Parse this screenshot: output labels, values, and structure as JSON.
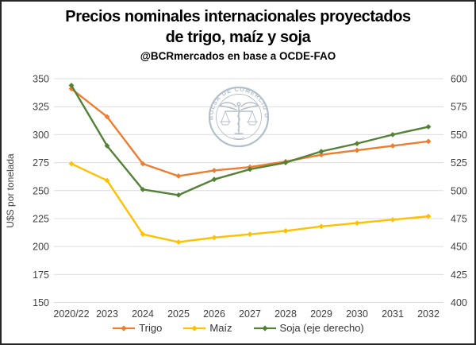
{
  "header": {
    "title_line1": "Precios nominales internacionales proyectados",
    "title_line2": "de trigo, maíz y soja",
    "subtitle": "@BCRmercados en base a OCDE-FAO"
  },
  "watermark": {
    "text": "BOLSA DE COMERCIO DE ROSARIO",
    "color": "#a6b4c2"
  },
  "chart_data": {
    "type": "line",
    "title": "Precios nominales internacionales proyectados de trigo, maíz y soja",
    "subtitle": "@BCRmercados en base a OCDE-FAO",
    "grid": true,
    "legend_position": "bottom",
    "categories": [
      "2020/22",
      "2023",
      "2024",
      "2025",
      "2026",
      "2027",
      "2028",
      "2029",
      "2030",
      "2031",
      "2032"
    ],
    "left_axis": {
      "label": "U$S por tonelada",
      "min": 150,
      "max": 350,
      "step": 25,
      "ticks": [
        350,
        325,
        300,
        275,
        250,
        225,
        200,
        175,
        150
      ]
    },
    "right_axis": {
      "min": 400,
      "max": 600,
      "step": 25,
      "ticks": [
        600,
        575,
        550,
        525,
        500,
        475,
        450,
        425,
        400
      ]
    },
    "series": [
      {
        "name": "Trigo",
        "axis": "left",
        "color": "#ED7D31",
        "values": [
          341,
          316,
          274,
          263,
          268,
          271,
          276,
          282,
          286,
          290,
          294
        ]
      },
      {
        "name": "Maíz",
        "axis": "left",
        "color": "#FFC000",
        "values": [
          274,
          259,
          211,
          204,
          208,
          211,
          214,
          218,
          221,
          224,
          227
        ]
      },
      {
        "name": "Soja (eje derecho)",
        "axis": "right",
        "color": "#538135",
        "values": [
          594,
          540,
          501,
          496,
          510,
          519,
          525,
          535,
          542,
          550,
          557
        ]
      }
    ],
    "colors": {
      "gridline": "#dcdcdc",
      "tick_label": "#404040"
    }
  }
}
